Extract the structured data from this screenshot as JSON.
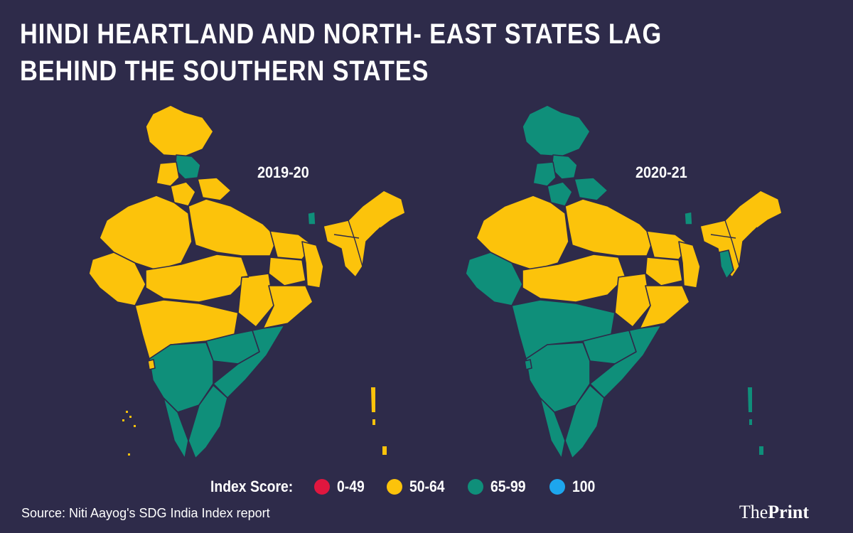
{
  "title": "HINDI HEARTLAND AND NORTH- EAST STATES LAG BEHIND THE SOUTHERN STATES",
  "maps": [
    {
      "label": "2019-20"
    },
    {
      "label": "2020-21"
    }
  ],
  "legend": {
    "title": "Index Score:",
    "items": [
      {
        "range": "0-49",
        "color": "#e0173f"
      },
      {
        "range": "50-64",
        "color": "#fcc30b"
      },
      {
        "range": "65-99",
        "color": "#0f8f7a"
      },
      {
        "range": "100",
        "color": "#1da6ee"
      }
    ]
  },
  "source": "Source: Niti Aayog's SDG India Index report",
  "brand": {
    "part1": "The",
    "part2": "Print"
  },
  "colors": {
    "background": "#2e2b4a",
    "yellow": "#fcc30b",
    "green": "#0f8f7a"
  }
}
